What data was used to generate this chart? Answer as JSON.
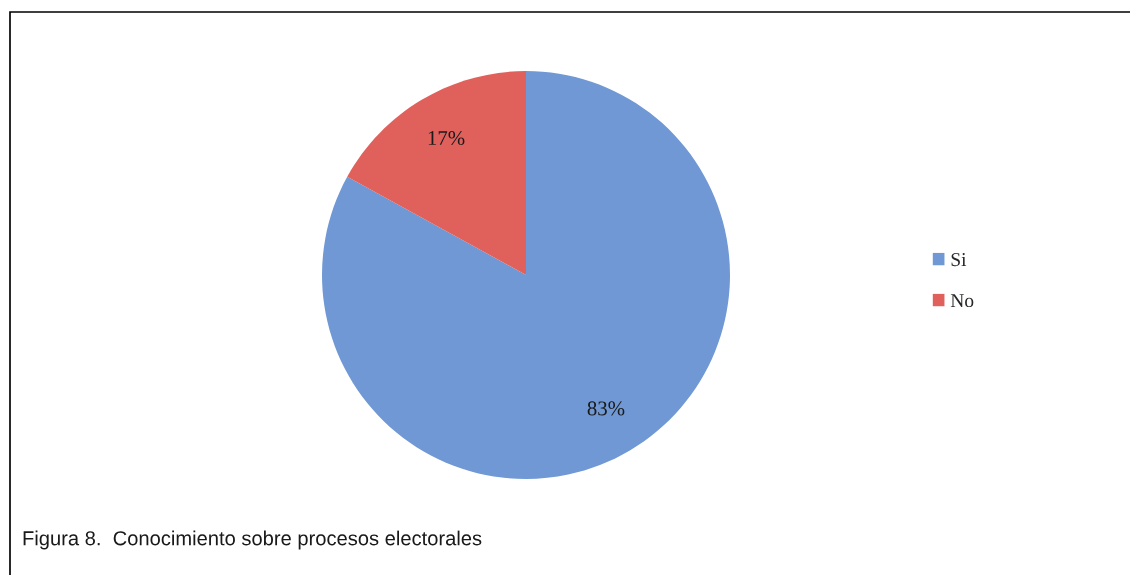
{
  "chart_data": {
    "type": "pie",
    "categories": [
      "Si",
      "No"
    ],
    "values": [
      83,
      17
    ],
    "colors": [
      "#6f98d4",
      "#e0605c"
    ],
    "value_labels": [
      "83%",
      "17%"
    ],
    "legend": "right",
    "annotations": [
      "Figura 8.  Conocimiento sobre procesos electorales"
    ]
  }
}
